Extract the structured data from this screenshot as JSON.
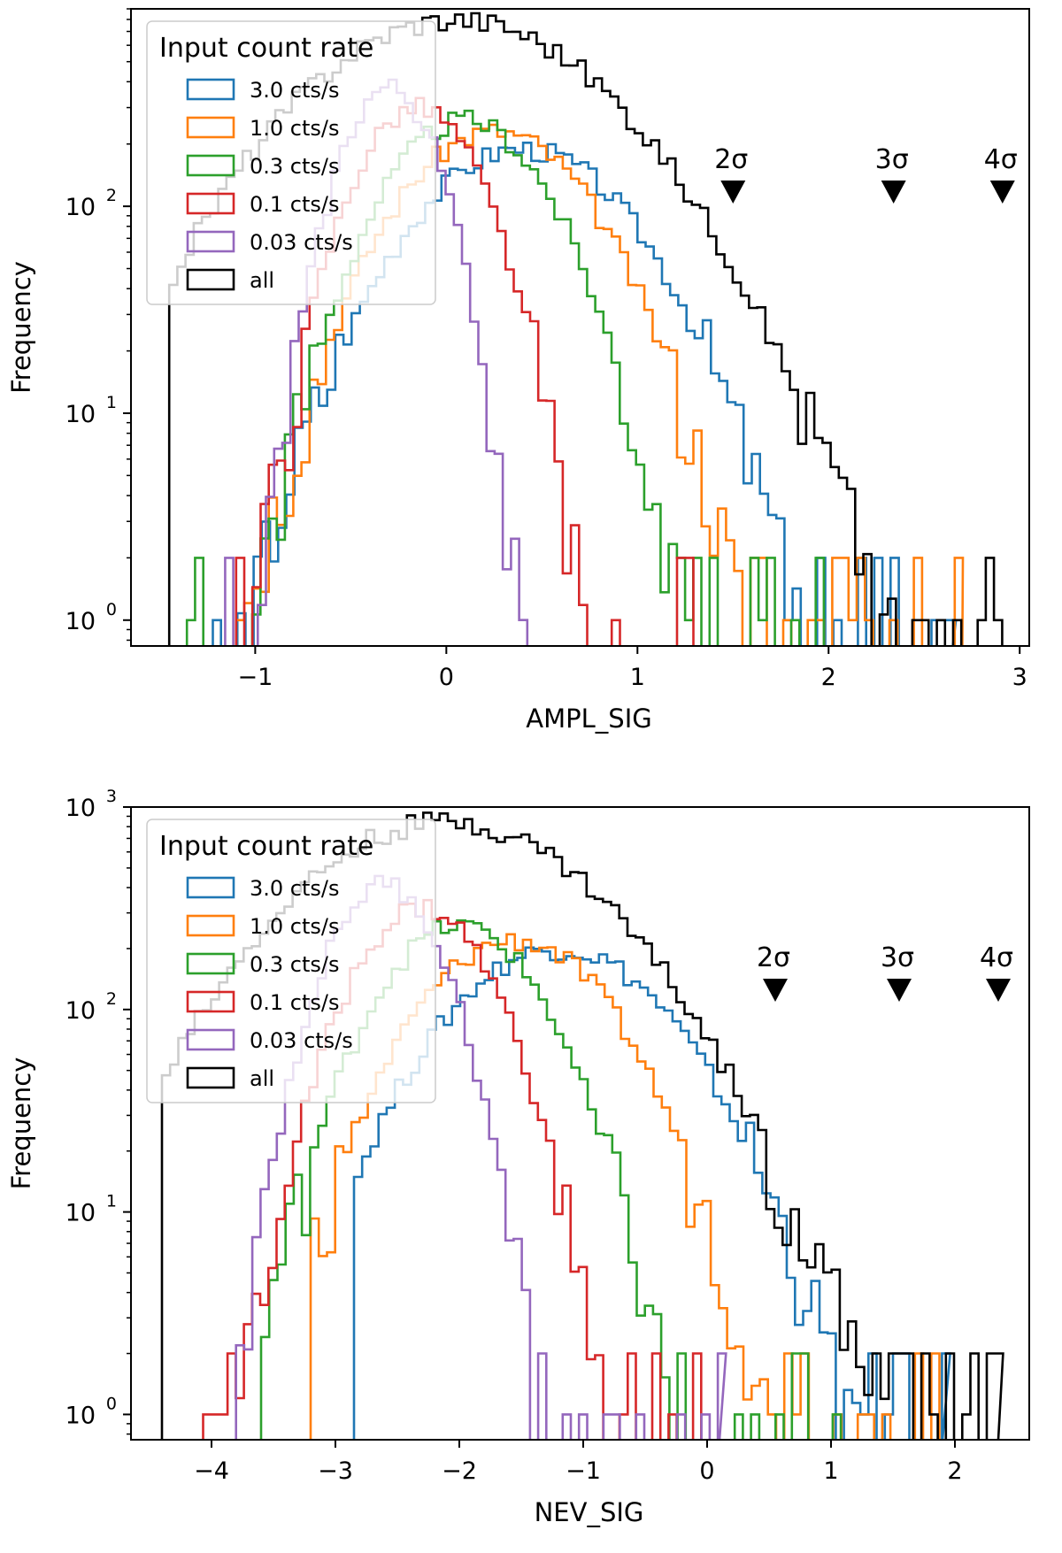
{
  "chart_data": [
    {
      "type": "histogram",
      "panel": "top",
      "xlabel": "AMPL_SIG",
      "ylabel": "Frequency",
      "yscale": "log",
      "xlim": [
        -1.65,
        3.05
      ],
      "ylim": [
        0.75,
        900
      ],
      "xticks": [
        -1,
        0,
        1,
        2,
        3
      ],
      "xtick_labels": [
        "−1",
        "0",
        "1",
        "2",
        "3"
      ],
      "ytick_base": "10",
      "yticks": [
        {
          "value": 1,
          "exp": "0"
        },
        {
          "value": 10,
          "exp": "1"
        },
        {
          "value": 100,
          "exp": "2"
        }
      ],
      "legend": {
        "title": "Input count rate",
        "location": "upper left"
      },
      "markers": [
        {
          "label": "2σ",
          "x": 1.5
        },
        {
          "label": "3σ",
          "x": 2.34
        },
        {
          "label": "4σ",
          "x": 2.91
        }
      ],
      "series": [
        {
          "name": "3.0 cts/s",
          "color": "#1f77b4",
          "peak_x": 0.4,
          "peak": 190,
          "width": 0.45,
          "xmin": -1.35,
          "xmax": 2.65
        },
        {
          "name": "1.0 cts/s",
          "color": "#ff7f0e",
          "peak_x": 0.25,
          "peak": 230,
          "width": 0.4,
          "xmin": -1.1,
          "xmax": 2.7
        },
        {
          "name": "0.3 cts/s",
          "color": "#2ca02c",
          "peak_x": 0.1,
          "peak": 260,
          "width": 0.34,
          "xmin": -1.4,
          "xmax": 2.05
        },
        {
          "name": "0.1 cts/s",
          "color": "#d62728",
          "peak_x": -0.15,
          "peak": 300,
          "width": 0.26,
          "xmin": -1.1,
          "xmax": 1.3
        },
        {
          "name": "0.03 cts/s",
          "color": "#9467bd",
          "peak_x": -0.3,
          "peak": 380,
          "width": 0.2,
          "xmin": -1.2,
          "xmax": 0.45
        },
        {
          "name": "all",
          "color": "#000000",
          "peak_x": 0.05,
          "peak": 800,
          "width": 0.62,
          "xmin": -1.45,
          "xmax": 2.92
        }
      ]
    },
    {
      "type": "histogram",
      "panel": "bottom",
      "xlabel": "NEV_SIG",
      "ylabel": "Frequency",
      "yscale": "log",
      "xlim": [
        -4.65,
        2.6
      ],
      "ylim": [
        0.75,
        1000
      ],
      "xticks": [
        -4,
        -3,
        -2,
        -1,
        0,
        1,
        2
      ],
      "xtick_labels": [
        "−4",
        "−3",
        "−2",
        "−1",
        "0",
        "1",
        "2"
      ],
      "ytick_base": "10",
      "yticks": [
        {
          "value": 1,
          "exp": "0"
        },
        {
          "value": 10,
          "exp": "1"
        },
        {
          "value": 100,
          "exp": "2"
        },
        {
          "value": 1000,
          "exp": "3"
        }
      ],
      "legend": {
        "title": "Input count rate",
        "location": "upper left"
      },
      "markers": [
        {
          "label": "2σ",
          "x": 0.55
        },
        {
          "label": "3σ",
          "x": 1.55
        },
        {
          "label": "4σ",
          "x": 2.35
        }
      ],
      "series": [
        {
          "name": "3.0 cts/s",
          "color": "#1f77b4",
          "peak_x": -1.2,
          "peak": 200,
          "width": 0.72,
          "xmin": -2.85,
          "xmax": 1.9
        },
        {
          "name": "1.0 cts/s",
          "color": "#ff7f0e",
          "peak_x": -1.55,
          "peak": 220,
          "width": 0.62,
          "xmin": -3.2,
          "xmax": 1.95
        },
        {
          "name": "0.3 cts/s",
          "color": "#2ca02c",
          "peak_x": -2.0,
          "peak": 260,
          "width": 0.52,
          "xmin": -3.6,
          "xmax": 1.2
        },
        {
          "name": "0.1 cts/s",
          "color": "#d62728",
          "peak_x": -2.3,
          "peak": 320,
          "width": 0.44,
          "xmin": -4.2,
          "xmax": 0.15
        },
        {
          "name": "0.03 cts/s",
          "color": "#9467bd",
          "peak_x": -2.6,
          "peak": 420,
          "width": 0.36,
          "xmin": -4.0,
          "xmax": 0.1
        },
        {
          "name": "all",
          "color": "#000000",
          "peak_x": -2.1,
          "peak": 850,
          "width": 0.95,
          "xmin": -4.4,
          "xmax": 2.35
        }
      ]
    }
  ]
}
